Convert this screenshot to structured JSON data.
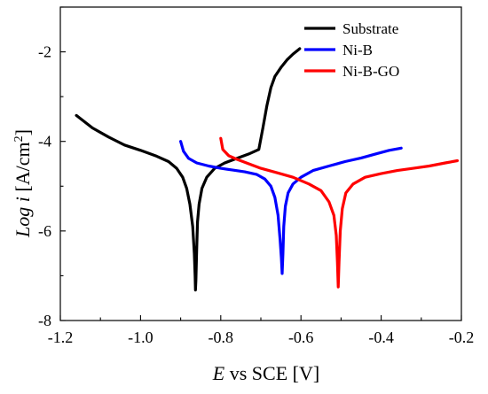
{
  "chart_data": {
    "type": "line",
    "xlabel_italic": "E",
    "xlabel_rest": " vs SCE [V]",
    "ylabel_italic_log": "Log ",
    "ylabel_italic_i": "i",
    "ylabel_unit": " [A/cm",
    "ylabel_sup": "2",
    "ylabel_close": "]",
    "xlim": [
      -1.2,
      -0.2
    ],
    "ylim": [
      -8,
      -1
    ],
    "x_ticks": [
      -1.2,
      -1.0,
      -0.8,
      -0.6,
      -0.4,
      -0.2
    ],
    "x_tick_labels": [
      "-1.2",
      "-1.0",
      "-0.8",
      "-0.6",
      "-0.4",
      "-0.2"
    ],
    "y_ticks": [
      -8,
      -6,
      -4,
      -2
    ],
    "y_tick_labels": [
      "-8",
      "-6",
      "-4",
      "-2"
    ],
    "grid": false,
    "legend_position": "top-right",
    "series": [
      {
        "name": "Substrate",
        "color": "#000000",
        "points": [
          [
            -1.16,
            -3.42
          ],
          [
            -1.12,
            -3.7
          ],
          [
            -1.08,
            -3.9
          ],
          [
            -1.04,
            -4.08
          ],
          [
            -1.0,
            -4.2
          ],
          [
            -0.96,
            -4.33
          ],
          [
            -0.93,
            -4.45
          ],
          [
            -0.91,
            -4.6
          ],
          [
            -0.895,
            -4.8
          ],
          [
            -0.885,
            -5.05
          ],
          [
            -0.877,
            -5.4
          ],
          [
            -0.87,
            -5.9
          ],
          [
            -0.866,
            -6.5
          ],
          [
            -0.864,
            -7.0
          ],
          [
            -0.863,
            -7.32
          ],
          [
            -0.862,
            -7.1
          ],
          [
            -0.86,
            -6.4
          ],
          [
            -0.858,
            -5.8
          ],
          [
            -0.854,
            -5.4
          ],
          [
            -0.847,
            -5.05
          ],
          [
            -0.835,
            -4.8
          ],
          [
            -0.815,
            -4.6
          ],
          [
            -0.79,
            -4.48
          ],
          [
            -0.76,
            -4.38
          ],
          [
            -0.73,
            -4.28
          ],
          [
            -0.705,
            -4.18
          ],
          [
            -0.695,
            -3.7
          ],
          [
            -0.685,
            -3.2
          ],
          [
            -0.675,
            -2.8
          ],
          [
            -0.665,
            -2.55
          ],
          [
            -0.65,
            -2.35
          ],
          [
            -0.635,
            -2.18
          ],
          [
            -0.62,
            -2.05
          ],
          [
            -0.603,
            -1.93
          ]
        ]
      },
      {
        "name": "Ni-B",
        "color": "#0000ff",
        "points": [
          [
            -0.9,
            -4.0
          ],
          [
            -0.893,
            -4.22
          ],
          [
            -0.88,
            -4.38
          ],
          [
            -0.86,
            -4.48
          ],
          [
            -0.83,
            -4.55
          ],
          [
            -0.8,
            -4.6
          ],
          [
            -0.77,
            -4.64
          ],
          [
            -0.74,
            -4.68
          ],
          [
            -0.71,
            -4.74
          ],
          [
            -0.69,
            -4.84
          ],
          [
            -0.675,
            -5.0
          ],
          [
            -0.665,
            -5.25
          ],
          [
            -0.657,
            -5.65
          ],
          [
            -0.652,
            -6.2
          ],
          [
            -0.649,
            -6.6
          ],
          [
            -0.647,
            -6.95
          ],
          [
            -0.645,
            -6.5
          ],
          [
            -0.643,
            -5.9
          ],
          [
            -0.639,
            -5.45
          ],
          [
            -0.632,
            -5.15
          ],
          [
            -0.62,
            -4.95
          ],
          [
            -0.6,
            -4.8
          ],
          [
            -0.57,
            -4.65
          ],
          [
            -0.53,
            -4.55
          ],
          [
            -0.49,
            -4.45
          ],
          [
            -0.45,
            -4.37
          ],
          [
            -0.41,
            -4.27
          ],
          [
            -0.38,
            -4.2
          ],
          [
            -0.35,
            -4.15
          ]
        ]
      },
      {
        "name": "Ni-B-GO",
        "color": "#ff0000",
        "points": [
          [
            -0.8,
            -3.93
          ],
          [
            -0.795,
            -4.18
          ],
          [
            -0.78,
            -4.32
          ],
          [
            -0.76,
            -4.4
          ],
          [
            -0.73,
            -4.5
          ],
          [
            -0.7,
            -4.6
          ],
          [
            -0.66,
            -4.7
          ],
          [
            -0.62,
            -4.8
          ],
          [
            -0.58,
            -4.95
          ],
          [
            -0.55,
            -5.1
          ],
          [
            -0.53,
            -5.35
          ],
          [
            -0.518,
            -5.65
          ],
          [
            -0.512,
            -6.1
          ],
          [
            -0.509,
            -6.7
          ],
          [
            -0.507,
            -7.25
          ],
          [
            -0.505,
            -6.7
          ],
          [
            -0.502,
            -6.0
          ],
          [
            -0.497,
            -5.5
          ],
          [
            -0.488,
            -5.15
          ],
          [
            -0.47,
            -4.95
          ],
          [
            -0.44,
            -4.8
          ],
          [
            -0.4,
            -4.72
          ],
          [
            -0.36,
            -4.65
          ],
          [
            -0.32,
            -4.6
          ],
          [
            -0.28,
            -4.55
          ],
          [
            -0.24,
            -4.48
          ],
          [
            -0.21,
            -4.43
          ]
        ]
      }
    ]
  }
}
